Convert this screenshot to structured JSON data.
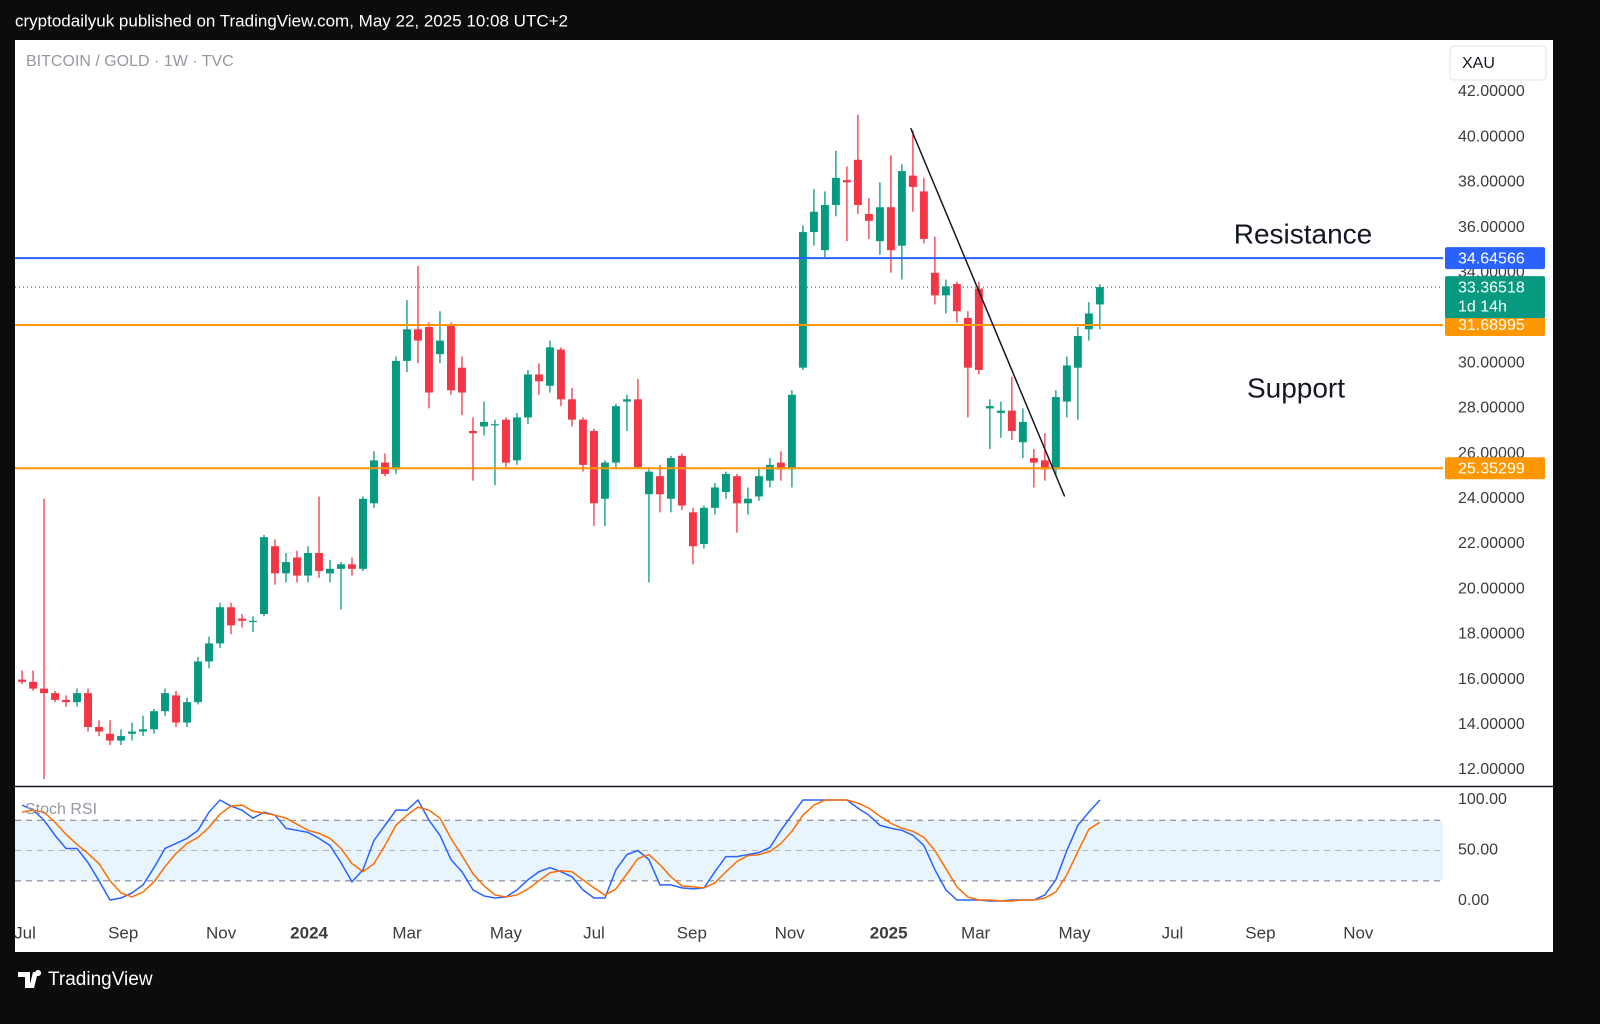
{
  "header": {
    "text": "cryptodailyuk published on TradingView.com, May 22, 2025 10:08 UTC+2"
  },
  "footer": {
    "brand": "TradingView"
  },
  "chart_data": [
    {
      "type": "candlestick",
      "title": "BITCOIN / GOLD · 1W · TVC",
      "currency": "XAU",
      "up_color": "#089981",
      "down_color": "#f23645",
      "x": [
        0,
        1,
        2,
        3,
        4,
        5,
        6,
        7,
        8,
        9,
        10,
        11,
        12,
        13,
        14,
        15,
        16,
        17,
        18,
        19,
        20,
        21,
        22,
        23,
        24,
        25,
        26,
        27,
        28,
        29,
        30,
        31,
        32,
        33,
        34,
        35,
        36,
        37,
        38,
        39,
        40,
        41,
        42,
        43,
        44,
        45,
        46,
        47,
        48,
        49,
        50,
        51,
        52,
        53,
        54,
        55,
        56,
        57,
        58,
        59,
        60,
        61,
        62,
        63,
        64,
        65,
        66,
        67,
        68,
        69,
        70,
        71,
        72,
        73,
        74,
        75,
        76,
        77,
        78,
        79,
        80,
        81,
        82,
        83,
        84,
        85,
        86,
        87,
        88,
        89,
        90,
        91,
        92,
        93,
        94,
        95,
        96,
        97,
        98
      ],
      "open": [
        16.0,
        15.9,
        15.6,
        15.4,
        15.1,
        15.0,
        15.4,
        13.9,
        13.6,
        13.3,
        13.6,
        13.7,
        13.8,
        14.6,
        15.3,
        14.1,
        15.0,
        16.8,
        17.6,
        19.2,
        18.7,
        18.6,
        18.9,
        21.9,
        20.7,
        21.4,
        20.6,
        21.6,
        20.7,
        20.9,
        21.1,
        20.9,
        23.8,
        25.6,
        25.3,
        30.1,
        31.5,
        31.6,
        30.4,
        31.7,
        29.8,
        27.0,
        27.2,
        27.3,
        27.5,
        25.7,
        27.6,
        29.5,
        29.0,
        30.6,
        28.4,
        27.5,
        27.0,
        24.0,
        25.6,
        28.3,
        28.4,
        24.2,
        25.0,
        24.0,
        25.9,
        23.4,
        22.0,
        23.6,
        24.3,
        25.0,
        23.8,
        24.1,
        24.8,
        25.6,
        25.3,
        29.8,
        35.8,
        35.0,
        37.0,
        38.1,
        39.0,
        36.6,
        35.4,
        36.9,
        35.2,
        38.3,
        37.6,
        34.0,
        33.0,
        33.5,
        32.0,
        33.3,
        28.0,
        27.8,
        27.9,
        26.5,
        25.8,
        25.7,
        25.3,
        28.3,
        29.8,
        31.5,
        32.6
      ],
      "high": [
        16.4,
        16.4,
        24.0,
        15.5,
        15.3,
        15.6,
        15.6,
        14.2,
        14.2,
        13.8,
        14.1,
        14.4,
        14.7,
        15.6,
        15.5,
        15.2,
        17.0,
        17.9,
        19.4,
        19.4,
        18.9,
        18.8,
        22.4,
        22.2,
        21.6,
        21.7,
        21.9,
        24.1,
        21.3,
        21.2,
        21.4,
        24.1,
        26.1,
        26.0,
        30.3,
        32.8,
        34.3,
        31.8,
        32.3,
        31.8,
        30.3,
        27.6,
        28.3,
        27.5,
        27.6,
        27.8,
        29.7,
        30.0,
        31.0,
        30.7,
        28.9,
        27.6,
        27.1,
        25.7,
        28.2,
        28.6,
        29.3,
        25.4,
        25.5,
        25.9,
        26.0,
        23.6,
        23.7,
        24.7,
        25.2,
        25.1,
        24.5,
        25.4,
        25.8,
        26.1,
        28.8,
        36.1,
        37.7,
        37.6,
        39.4,
        38.7,
        41.0,
        37.3,
        38.0,
        39.2,
        38.8,
        40.3,
        38.2,
        35.6,
        33.7,
        33.6,
        32.3,
        33.6,
        28.4,
        28.3,
        29.4,
        28.0,
        26.2,
        26.9,
        28.8,
        30.3,
        31.6,
        32.7,
        33.5
      ],
      "low": [
        15.8,
        15.5,
        11.6,
        15.0,
        14.8,
        14.8,
        13.7,
        13.5,
        13.1,
        13.1,
        13.3,
        13.5,
        13.6,
        14.4,
        13.9,
        13.9,
        14.9,
        16.5,
        17.4,
        18.0,
        18.3,
        18.1,
        18.8,
        20.2,
        20.3,
        20.3,
        20.3,
        20.5,
        20.3,
        19.1,
        20.6,
        20.8,
        23.6,
        25.0,
        25.1,
        29.6,
        30.0,
        28.0,
        30.0,
        28.6,
        27.7,
        24.8,
        26.8,
        24.6,
        25.4,
        25.5,
        27.3,
        28.6,
        28.7,
        28.1,
        27.2,
        25.2,
        22.8,
        22.8,
        25.3,
        27.0,
        25.4,
        20.3,
        23.4,
        23.4,
        23.5,
        21.1,
        21.8,
        23.3,
        24.0,
        22.5,
        23.3,
        23.9,
        24.5,
        24.8,
        24.5,
        29.7,
        35.2,
        34.7,
        36.5,
        35.4,
        36.6,
        35.5,
        34.8,
        34.0,
        33.7,
        36.7,
        35.3,
        32.6,
        32.2,
        31.8,
        27.6,
        29.5,
        26.2,
        26.7,
        26.6,
        25.8,
        24.5,
        24.8,
        25.0,
        27.6,
        27.5,
        31.0,
        31.5
      ],
      "close": [
        15.9,
        15.6,
        15.4,
        15.1,
        15.0,
        15.4,
        13.9,
        13.7,
        13.3,
        13.5,
        13.7,
        13.8,
        14.6,
        15.4,
        14.1,
        15.0,
        16.8,
        17.6,
        19.2,
        18.4,
        18.6,
        18.6,
        22.3,
        20.7,
        21.2,
        20.6,
        21.6,
        20.8,
        20.9,
        21.1,
        20.9,
        24.0,
        25.7,
        25.1,
        30.1,
        31.5,
        31.0,
        28.7,
        31.0,
        28.8,
        28.7,
        26.9,
        27.4,
        27.3,
        25.6,
        27.6,
        29.5,
        29.2,
        30.7,
        28.4,
        27.5,
        25.5,
        23.8,
        25.6,
        28.1,
        28.4,
        25.4,
        25.2,
        24.2,
        25.8,
        23.7,
        21.9,
        23.6,
        24.5,
        25.1,
        23.8,
        24.0,
        25.0,
        25.5,
        25.3,
        28.6,
        35.8,
        36.7,
        37.0,
        38.2,
        38.0,
        37.0,
        36.3,
        36.9,
        35.0,
        38.5,
        37.8,
        35.5,
        33.0,
        33.4,
        32.3,
        29.8,
        29.7,
        28.1,
        27.9,
        27.0,
        27.4,
        25.6,
        25.3,
        28.5,
        29.9,
        31.2,
        32.2,
        33.36518
      ],
      "countdown": "1d 14h",
      "levels": [
        {
          "value": 34.64566,
          "color": "#2962ff"
        },
        {
          "value": 31.68995,
          "color": "#ff9800"
        },
        {
          "value": 25.35299,
          "color": "#ff9800"
        }
      ],
      "trendline": {
        "x": [
          80.8,
          94.8
        ],
        "y": [
          40.4,
          24.1
        ],
        "color": "#131722"
      },
      "annotations": [
        "Resistance",
        "Support"
      ],
      "xlim": [
        -0.64,
        129.2
      ],
      "xticks": [
        {
          "value": 0.27,
          "label": "Jul"
        },
        {
          "value": 9.2,
          "label": "Sep"
        },
        {
          "value": 18.1,
          "label": "Nov"
        },
        {
          "value": 26.1,
          "label": "2024"
        },
        {
          "value": 35,
          "label": "Mar"
        },
        {
          "value": 44,
          "label": "May"
        },
        {
          "value": 52,
          "label": "Jul"
        },
        {
          "value": 60.9,
          "label": "Sep"
        },
        {
          "value": 69.8,
          "label": "Nov"
        },
        {
          "value": 78.8,
          "label": "2025"
        },
        {
          "value": 86.7,
          "label": "Mar"
        },
        {
          "value": 95.7,
          "label": "May"
        },
        {
          "value": 104.6,
          "label": "Jul"
        },
        {
          "value": 112.6,
          "label": "Sep"
        },
        {
          "value": 121.5,
          "label": "Nov"
        }
      ],
      "ylim": [
        11.29,
        44.3
      ],
      "yticks": [
        {
          "value": 12,
          "label": "12.00000"
        },
        {
          "value": 14,
          "label": "14.00000"
        },
        {
          "value": 16,
          "label": "16.00000"
        },
        {
          "value": 18,
          "label": "18.00000"
        },
        {
          "value": 20,
          "label": "20.00000"
        },
        {
          "value": 22,
          "label": "22.00000"
        },
        {
          "value": 24,
          "label": "24.00000"
        },
        {
          "value": 26,
          "label": "26.00000"
        },
        {
          "value": 28,
          "label": "28.00000"
        },
        {
          "value": 30,
          "label": "30.00000"
        },
        {
          "value": 32,
          "label": "32.00000"
        },
        {
          "value": 34,
          "label": "34.00000"
        },
        {
          "value": 36,
          "label": "36.00000"
        },
        {
          "value": 38,
          "label": "38.00000"
        },
        {
          "value": 40,
          "label": "40.00000"
        },
        {
          "value": 42,
          "label": "42.00000"
        }
      ],
      "grid": false
    },
    {
      "type": "line",
      "title": "Stoch RSI",
      "x": [
        0,
        1,
        2,
        3,
        4,
        5,
        6,
        7,
        8,
        9,
        10,
        11,
        12,
        13,
        14,
        15,
        16,
        17,
        18,
        19,
        20,
        21,
        22,
        23,
        24,
        25,
        26,
        27,
        28,
        29,
        30,
        31,
        32,
        33,
        34,
        35,
        36,
        37,
        38,
        39,
        40,
        41,
        42,
        43,
        44,
        45,
        46,
        47,
        48,
        49,
        50,
        51,
        52,
        53,
        54,
        55,
        56,
        57,
        58,
        59,
        60,
        61,
        62,
        63,
        64,
        65,
        66,
        67,
        68,
        69,
        70,
        71,
        72,
        73,
        74,
        75,
        76,
        77,
        78,
        79,
        80,
        81,
        82,
        83,
        84,
        85,
        86,
        87,
        88,
        89,
        90,
        91,
        92,
        93,
        94,
        95,
        96,
        97,
        98
      ],
      "series": [
        {
          "color": "#2962ff",
          "values": [
            95,
            90,
            80,
            65,
            52,
            52,
            38,
            20,
            1,
            3,
            8,
            16,
            33,
            52,
            57,
            62,
            70,
            88,
            100,
            94,
            90,
            82,
            88,
            85,
            72,
            70,
            68,
            62,
            55,
            38,
            19,
            31,
            60,
            75,
            90,
            90,
            100,
            80,
            65,
            41,
            29,
            11,
            5,
            3,
            4,
            11,
            21,
            29,
            33,
            29,
            24,
            11,
            3,
            3,
            31,
            46,
            50,
            41,
            16,
            16,
            13,
            12,
            13,
            29,
            44,
            44,
            46,
            48,
            53,
            70,
            85,
            100,
            100,
            100,
            100,
            100,
            92,
            85,
            75,
            72,
            70,
            65,
            55,
            31,
            11,
            1,
            1,
            1,
            0,
            0,
            1,
            1,
            1,
            6,
            21,
            50,
            75,
            88,
            100
          ]
        },
        {
          "color": "#ff6d00",
          "values": [
            88,
            90,
            88,
            78,
            66,
            56,
            47,
            37,
            20,
            8,
            4,
            9,
            19,
            34,
            47,
            57,
            63,
            73,
            86,
            94,
            95,
            89,
            87,
            85,
            82,
            76,
            70,
            67,
            62,
            52,
            37,
            29,
            37,
            55,
            75,
            85,
            93,
            90,
            82,
            62,
            45,
            27,
            15,
            6,
            4,
            6,
            12,
            20,
            28,
            30,
            29,
            21,
            13,
            6,
            12,
            27,
            42,
            46,
            36,
            24,
            15,
            14,
            13,
            18,
            29,
            39,
            45,
            46,
            49,
            57,
            69,
            85,
            95,
            100,
            100,
            100,
            97,
            92,
            84,
            77,
            72,
            69,
            63,
            50,
            32,
            14,
            4,
            1,
            1,
            0,
            0,
            1,
            1,
            3,
            9,
            26,
            49,
            71,
            78
          ]
        }
      ],
      "band": [
        20,
        80
      ],
      "band_color": "#2196f3",
      "ylim": [
        -18.8,
        112.9
      ],
      "yticks": [
        {
          "value": 0,
          "label": "0.00"
        },
        {
          "value": 50,
          "label": "50.00"
        },
        {
          "value": 100,
          "label": "100.00"
        }
      ]
    }
  ]
}
